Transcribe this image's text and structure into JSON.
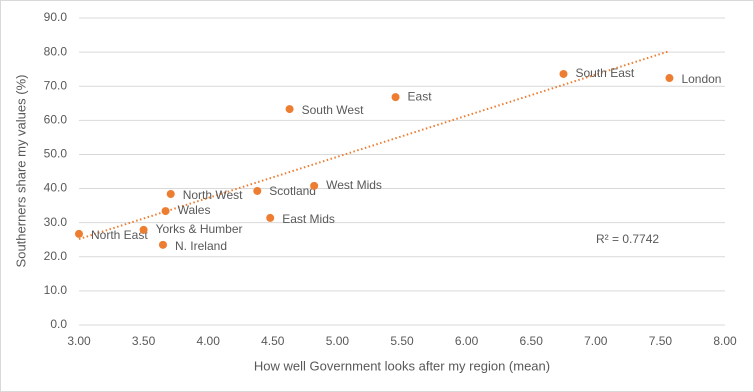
{
  "chart_data": {
    "type": "scatter",
    "x_label": "How well Government looks after my region (mean)",
    "y_label": "Southerners share my values (%)",
    "labels": [
      "North East",
      "Yorks & Humber",
      "N. Ireland",
      "Wales",
      "North West",
      "Scotland",
      "East Mids",
      "West Mids",
      "South West",
      "East",
      "South East",
      "London"
    ],
    "x": [
      3.0,
      3.5,
      3.65,
      3.67,
      3.71,
      4.38,
      4.48,
      4.82,
      4.63,
      5.45,
      6.75,
      7.57
    ],
    "values": [
      26.7,
      27.9,
      23.5,
      33.4,
      38.4,
      39.3,
      31.4,
      40.8,
      63.3,
      66.8,
      73.6,
      72.4
    ],
    "color": "#ed7d31",
    "trendline": {
      "x": [
        3.0,
        7.57
      ],
      "y": [
        25.2,
        80.3
      ],
      "color": "#ed7d31"
    },
    "annotation": "R² = 0.7742",
    "xlim": [
      3.0,
      8.0
    ],
    "xticks": [
      {
        "value": 3.0,
        "label": "3.00"
      },
      {
        "value": 3.5,
        "label": "3.50"
      },
      {
        "value": 4.0,
        "label": "4.00"
      },
      {
        "value": 4.5,
        "label": "4.50"
      },
      {
        "value": 5.0,
        "label": "5.00"
      },
      {
        "value": 5.5,
        "label": "5.50"
      },
      {
        "value": 6.0,
        "label": "6.00"
      },
      {
        "value": 6.5,
        "label": "6.50"
      },
      {
        "value": 7.0,
        "label": "7.00"
      },
      {
        "value": 7.5,
        "label": "7.50"
      },
      {
        "value": 8.0,
        "label": "8.00"
      }
    ],
    "ylim": [
      0,
      90
    ],
    "yticks": [
      {
        "value": 0,
        "label": "0.0"
      },
      {
        "value": 10,
        "label": "10.0"
      },
      {
        "value": 20,
        "label": "20.0"
      },
      {
        "value": 30,
        "label": "30.0"
      },
      {
        "value": 40,
        "label": "40.0"
      },
      {
        "value": 50,
        "label": "50.0"
      },
      {
        "value": 60,
        "label": "60.0"
      },
      {
        "value": 70,
        "label": "70.0"
      },
      {
        "value": 80,
        "label": "80.0"
      },
      {
        "value": 90,
        "label": "90.0"
      }
    ],
    "grid": true
  }
}
